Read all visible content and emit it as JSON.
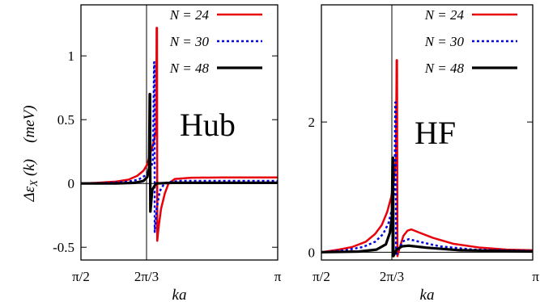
{
  "ylabel_left": "Δε",
  "ylabel_sub": "X",
  "ylabel_arg": "(k)",
  "ylabel_unit": "(meV)",
  "chart_data": [
    {
      "type": "line",
      "panel_label": "Hub",
      "xlabel": "ka",
      "xlim": [
        1.5708,
        3.1416
      ],
      "ylim": [
        -0.6,
        1.4
      ],
      "xticks": [
        {
          "value": 1.5708,
          "label": "π/2"
        },
        {
          "value": 2.0944,
          "label": "2π/3"
        },
        {
          "value": 3.1416,
          "label": "π"
        }
      ],
      "yticks": [
        {
          "value": -0.5,
          "label": "-0.5"
        },
        {
          "value": 0,
          "label": "0"
        },
        {
          "value": 0.5,
          "label": "0.5"
        },
        {
          "value": 1,
          "label": "1"
        }
      ],
      "vline": 2.0944,
      "grid": false,
      "legend_position": "top-right",
      "series": [
        {
          "name": "N = 24",
          "color": "#e8000b",
          "style": "solid",
          "width": 2.5,
          "points": [
            [
              1.5708,
              0.0
            ],
            [
              1.7,
              0.005
            ],
            [
              1.85,
              0.015
            ],
            [
              1.95,
              0.03
            ],
            [
              2.02,
              0.06
            ],
            [
              2.07,
              0.1
            ],
            [
              2.1,
              0.15
            ],
            [
              2.12,
              0.22
            ],
            [
              2.15,
              0.32
            ],
            [
              2.172,
              0.42
            ],
            [
              2.175,
              1.22
            ],
            [
              2.178,
              1.22
            ],
            [
              2.18,
              -0.45
            ],
            [
              2.19,
              -0.35
            ],
            [
              2.21,
              -0.2
            ],
            [
              2.24,
              -0.08
            ],
            [
              2.27,
              0.0
            ],
            [
              2.32,
              0.035
            ],
            [
              2.45,
              0.045
            ],
            [
              2.7,
              0.047
            ],
            [
              3.1416,
              0.047
            ]
          ]
        },
        {
          "name": "N = 30",
          "color": "#0000e0",
          "style": "dotted",
          "width": 2.5,
          "points": [
            [
              1.5708,
              0.0
            ],
            [
              1.8,
              0.005
            ],
            [
              1.95,
              0.015
            ],
            [
              2.03,
              0.03
            ],
            [
              2.08,
              0.06
            ],
            [
              2.12,
              0.1
            ],
            [
              2.145,
              0.17
            ],
            [
              2.155,
              0.95
            ],
            [
              2.158,
              0.95
            ],
            [
              2.16,
              -0.38
            ],
            [
              2.175,
              -0.2
            ],
            [
              2.2,
              -0.06
            ],
            [
              2.24,
              0.005
            ],
            [
              2.35,
              0.02
            ],
            [
              2.6,
              0.02
            ],
            [
              3.1416,
              0.02
            ]
          ]
        },
        {
          "name": "N = 48",
          "color": "#000000",
          "style": "solid",
          "width": 3.2,
          "points": [
            [
              1.5708,
              0.0
            ],
            [
              1.85,
              0.0
            ],
            [
              2.0,
              0.005
            ],
            [
              2.07,
              0.02
            ],
            [
              2.1,
              0.05
            ],
            [
              2.115,
              0.12
            ],
            [
              2.12,
              0.7
            ],
            [
              2.122,
              0.7
            ],
            [
              2.125,
              -0.22
            ],
            [
              2.14,
              -0.05
            ],
            [
              2.17,
              0.0
            ],
            [
              2.3,
              0.005
            ],
            [
              2.6,
              0.005
            ],
            [
              3.1416,
              0.005
            ]
          ]
        }
      ]
    },
    {
      "type": "line",
      "panel_label": "HF",
      "xlabel": "ka",
      "xlim": [
        1.5708,
        3.1416
      ],
      "ylim": [
        -0.12,
        3.8
      ],
      "xticks": [
        {
          "value": 1.5708,
          "label": "π/2"
        },
        {
          "value": 2.0944,
          "label": "2π/3"
        },
        {
          "value": 3.1416,
          "label": "π"
        }
      ],
      "yticks": [
        {
          "value": 0,
          "label": "0"
        },
        {
          "value": 2,
          "label": "2"
        }
      ],
      "vline": 2.0944,
      "grid": false,
      "legend_position": "top-right",
      "series": [
        {
          "name": "N = 24",
          "color": "#e8000b",
          "style": "solid",
          "width": 2.5,
          "points": [
            [
              1.5708,
              0.0
            ],
            [
              1.7,
              0.04
            ],
            [
              1.8,
              0.08
            ],
            [
              1.9,
              0.16
            ],
            [
              1.97,
              0.28
            ],
            [
              2.02,
              0.42
            ],
            [
              2.06,
              0.62
            ],
            [
              2.09,
              0.85
            ],
            [
              2.11,
              1.1
            ],
            [
              2.125,
              1.45
            ],
            [
              2.13,
              2.95
            ],
            [
              2.133,
              2.95
            ],
            [
              2.136,
              -0.06
            ],
            [
              2.15,
              0.05
            ],
            [
              2.18,
              0.25
            ],
            [
              2.21,
              0.33
            ],
            [
              2.24,
              0.35
            ],
            [
              2.3,
              0.3
            ],
            [
              2.4,
              0.22
            ],
            [
              2.55,
              0.13
            ],
            [
              2.75,
              0.07
            ],
            [
              2.95,
              0.04
            ],
            [
              3.1416,
              0.03
            ]
          ]
        },
        {
          "name": "N = 30",
          "color": "#0000e0",
          "style": "dotted",
          "width": 2.5,
          "points": [
            [
              1.5708,
              0.0
            ],
            [
              1.75,
              0.03
            ],
            [
              1.88,
              0.08
            ],
            [
              1.97,
              0.16
            ],
            [
              2.03,
              0.28
            ],
            [
              2.07,
              0.45
            ],
            [
              2.1,
              0.7
            ],
            [
              2.115,
              1.0
            ],
            [
              2.12,
              2.3
            ],
            [
              2.123,
              2.3
            ],
            [
              2.126,
              -0.05
            ],
            [
              2.15,
              0.07
            ],
            [
              2.18,
              0.17
            ],
            [
              2.22,
              0.2
            ],
            [
              2.3,
              0.16
            ],
            [
              2.45,
              0.09
            ],
            [
              2.7,
              0.04
            ],
            [
              3.1416,
              0.02
            ]
          ]
        },
        {
          "name": "N = 48",
          "color": "#000000",
          "style": "solid",
          "width": 3.2,
          "points": [
            [
              1.5708,
              0.0
            ],
            [
              1.85,
              0.01
            ],
            [
              1.98,
              0.04
            ],
            [
              2.05,
              0.12
            ],
            [
              2.08,
              0.3
            ],
            [
              2.095,
              0.55
            ],
            [
              2.1,
              1.45
            ],
            [
              2.103,
              1.45
            ],
            [
              2.106,
              -0.06
            ],
            [
              2.13,
              0.04
            ],
            [
              2.17,
              0.09
            ],
            [
              2.22,
              0.1
            ],
            [
              2.35,
              0.07
            ],
            [
              2.6,
              0.03
            ],
            [
              3.1416,
              0.01
            ]
          ]
        }
      ]
    }
  ]
}
